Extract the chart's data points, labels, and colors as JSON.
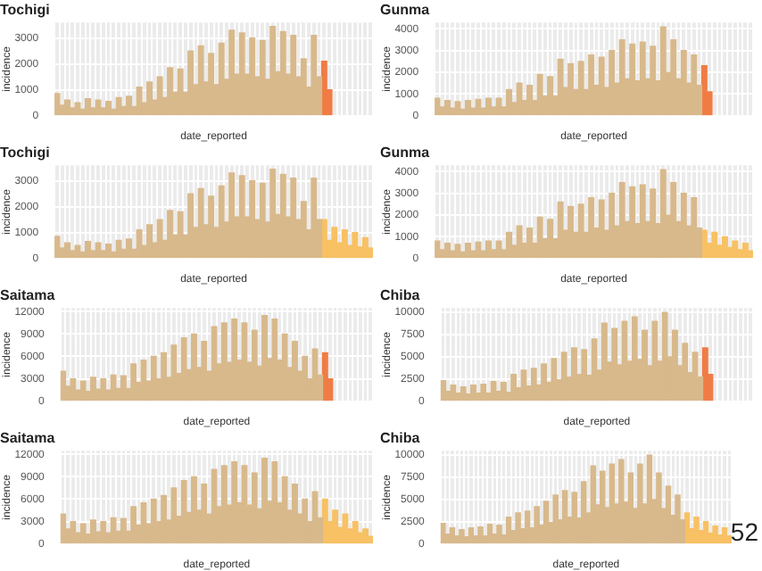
{
  "chart_data": [
    {
      "type": "bar",
      "title": "Tochigi",
      "xlabel": "date_reported",
      "ylabel": "incidence",
      "stacked": true,
      "grid": true,
      "tick_labels": "y",
      "ylim": [
        0,
        3600
      ],
      "yticks": [
        0,
        1000,
        2000,
        3000
      ],
      "categories": [
        null,
        null,
        null,
        null,
        null,
        null,
        null,
        null,
        null,
        null,
        null,
        null,
        null,
        null,
        null,
        null,
        null,
        null,
        null,
        null,
        null,
        null,
        null,
        null,
        null,
        null,
        null,
        null,
        null,
        null,
        null,
        null,
        null,
        null,
        null,
        null,
        null,
        null,
        null,
        null,
        null,
        null,
        null,
        null,
        null,
        null,
        null,
        null,
        null,
        null,
        null,
        null,
        null,
        null,
        null,
        null,
        null,
        null,
        null,
        null,
        null,
        null
      ],
      "series": [
        {
          "color": "#d8b98c",
          "values": [
            850,
            400,
            600,
            300,
            500,
            250,
            650,
            300,
            600,
            300,
            550,
            250,
            700,
            350,
            750,
            350,
            1100,
            500,
            1300,
            600,
            1500,
            700,
            1850,
            900,
            1800,
            900,
            2500,
            1200,
            2700,
            1300,
            2400,
            1200,
            2800,
            1400,
            3300,
            1600,
            3200,
            1600,
            3000,
            1500,
            2900,
            1400,
            3450,
            1700,
            3250,
            1600,
            3100,
            1500,
            2200,
            1100,
            3100,
            1500,
            null,
            null,
            null,
            null,
            null,
            null,
            null,
            null,
            null,
            null
          ]
        },
        {
          "color": "#f07c45",
          "values": [
            null,
            null,
            null,
            null,
            null,
            null,
            null,
            null,
            null,
            null,
            null,
            null,
            null,
            null,
            null,
            null,
            null,
            null,
            null,
            null,
            null,
            null,
            null,
            null,
            null,
            null,
            null,
            null,
            null,
            null,
            null,
            null,
            null,
            null,
            null,
            null,
            null,
            null,
            null,
            null,
            null,
            null,
            null,
            null,
            null,
            null,
            null,
            null,
            null,
            null,
            null,
            null,
            2100,
            1000,
            null,
            null,
            null,
            null,
            null,
            null,
            null,
            null
          ]
        }
      ]
    },
    {
      "type": "bar",
      "title": "Gunma",
      "xlabel": "date_reported",
      "ylabel": "incidence",
      "stacked": true,
      "grid": true,
      "tick_labels": "y",
      "ylim": [
        0,
        4300
      ],
      "yticks": [
        0,
        1000,
        2000,
        3000,
        4000
      ],
      "categories": [
        null,
        null,
        null,
        null,
        null,
        null,
        null,
        null,
        null,
        null,
        null,
        null,
        null,
        null,
        null,
        null,
        null,
        null,
        null,
        null,
        null,
        null,
        null,
        null,
        null,
        null,
        null,
        null,
        null,
        null,
        null,
        null,
        null,
        null,
        null,
        null,
        null,
        null,
        null,
        null,
        null,
        null,
        null,
        null,
        null,
        null,
        null,
        null,
        null,
        null,
        null,
        null,
        null,
        null,
        null,
        null,
        null,
        null,
        null,
        null,
        null,
        null
      ],
      "series": [
        {
          "color": "#d8b98c",
          "values": [
            800,
            400,
            700,
            350,
            650,
            300,
            700,
            350,
            750,
            350,
            800,
            400,
            800,
            400,
            1200,
            600,
            1500,
            700,
            1400,
            700,
            1900,
            900,
            1800,
            900,
            2600,
            1300,
            2400,
            1200,
            2500,
            1200,
            2800,
            1400,
            2700,
            1300,
            3000,
            1500,
            3500,
            1700,
            3300,
            1600,
            3400,
            1700,
            3200,
            1600,
            4100,
            2000,
            3500,
            1700,
            3000,
            1500,
            2800,
            1400,
            null,
            null,
            null,
            null,
            null,
            null,
            null,
            null,
            null,
            null
          ]
        },
        {
          "color": "#f07c45",
          "values": [
            null,
            null,
            null,
            null,
            null,
            null,
            null,
            null,
            null,
            null,
            null,
            null,
            null,
            null,
            null,
            null,
            null,
            null,
            null,
            null,
            null,
            null,
            null,
            null,
            null,
            null,
            null,
            null,
            null,
            null,
            null,
            null,
            null,
            null,
            null,
            null,
            null,
            null,
            null,
            null,
            null,
            null,
            null,
            null,
            null,
            null,
            null,
            null,
            null,
            null,
            null,
            null,
            2300,
            1100,
            null,
            null,
            null,
            null,
            null,
            null,
            null,
            null
          ]
        }
      ]
    },
    {
      "type": "bar",
      "title": "Tochigi",
      "xlabel": "date_reported",
      "ylabel": "incidence",
      "stacked": true,
      "grid": true,
      "tick_labels": "y",
      "ylim": [
        0,
        3600
      ],
      "yticks": [
        0,
        1000,
        2000,
        3000
      ],
      "categories": [
        null,
        null,
        null,
        null,
        null,
        null,
        null,
        null,
        null,
        null,
        null,
        null,
        null,
        null,
        null,
        null,
        null,
        null,
        null,
        null,
        null,
        null,
        null,
        null,
        null,
        null,
        null,
        null,
        null,
        null,
        null,
        null,
        null,
        null,
        null,
        null,
        null,
        null,
        null,
        null,
        null,
        null,
        null,
        null,
        null,
        null,
        null,
        null,
        null,
        null,
        null,
        null,
        null,
        null,
        null,
        null,
        null,
        null,
        null,
        null,
        null,
        null
      ],
      "series": [
        {
          "color": "#d8b98c",
          "values": [
            850,
            400,
            600,
            300,
            500,
            250,
            650,
            300,
            600,
            300,
            550,
            250,
            700,
            350,
            750,
            350,
            1100,
            500,
            1300,
            600,
            1500,
            700,
            1850,
            900,
            1800,
            900,
            2500,
            1200,
            2700,
            1300,
            2400,
            1200,
            2800,
            1400,
            3300,
            1600,
            3200,
            1600,
            3000,
            1500,
            2900,
            1400,
            3450,
            1700,
            3250,
            1600,
            3100,
            1500,
            2200,
            1100,
            3100,
            1500,
            null,
            null,
            null,
            null,
            null,
            null,
            null,
            null,
            null,
            null
          ]
        },
        {
          "color": "#f7c164",
          "values": [
            null,
            null,
            null,
            null,
            null,
            null,
            null,
            null,
            null,
            null,
            null,
            null,
            null,
            null,
            null,
            null,
            null,
            null,
            null,
            null,
            null,
            null,
            null,
            null,
            null,
            null,
            null,
            null,
            null,
            null,
            null,
            null,
            null,
            null,
            null,
            null,
            null,
            null,
            null,
            null,
            null,
            null,
            null,
            null,
            null,
            null,
            null,
            null,
            null,
            null,
            null,
            null,
            1500,
            700,
            1200,
            600,
            1100,
            500,
            1000,
            450,
            800,
            400
          ]
        }
      ]
    },
    {
      "type": "bar",
      "title": "Gunma",
      "xlabel": "date_reported",
      "ylabel": "incidence",
      "stacked": true,
      "grid": true,
      "tick_labels": "y",
      "ylim": [
        0,
        4300
      ],
      "yticks": [
        0,
        1000,
        2000,
        3000,
        4000
      ],
      "categories": [
        null,
        null,
        null,
        null,
        null,
        null,
        null,
        null,
        null,
        null,
        null,
        null,
        null,
        null,
        null,
        null,
        null,
        null,
        null,
        null,
        null,
        null,
        null,
        null,
        null,
        null,
        null,
        null,
        null,
        null,
        null,
        null,
        null,
        null,
        null,
        null,
        null,
        null,
        null,
        null,
        null,
        null,
        null,
        null,
        null,
        null,
        null,
        null,
        null,
        null,
        null,
        null,
        null,
        null,
        null,
        null,
        null,
        null,
        null,
        null,
        null,
        null
      ],
      "series": [
        {
          "color": "#d8b98c",
          "values": [
            800,
            400,
            700,
            350,
            650,
            300,
            700,
            350,
            750,
            350,
            800,
            400,
            800,
            400,
            1200,
            600,
            1500,
            700,
            1400,
            700,
            1900,
            900,
            1800,
            900,
            2600,
            1300,
            2400,
            1200,
            2500,
            1200,
            2800,
            1400,
            2700,
            1300,
            3000,
            1500,
            3500,
            1700,
            3300,
            1600,
            3400,
            1700,
            3200,
            1600,
            4100,
            2000,
            3500,
            1700,
            3000,
            1500,
            2800,
            1400,
            null,
            null,
            null,
            null,
            null,
            null,
            null,
            null,
            null,
            null
          ]
        },
        {
          "color": "#f7c164",
          "values": [
            null,
            null,
            null,
            null,
            null,
            null,
            null,
            null,
            null,
            null,
            null,
            null,
            null,
            null,
            null,
            null,
            null,
            null,
            null,
            null,
            null,
            null,
            null,
            null,
            null,
            null,
            null,
            null,
            null,
            null,
            null,
            null,
            null,
            null,
            null,
            null,
            null,
            null,
            null,
            null,
            null,
            null,
            null,
            null,
            null,
            null,
            null,
            null,
            null,
            null,
            null,
            null,
            1300,
            700,
            1200,
            600,
            1000,
            500,
            800,
            400,
            700,
            350
          ]
        }
      ]
    },
    {
      "type": "bar",
      "title": "Saitama",
      "xlabel": "date_reported",
      "ylabel": "incidence",
      "stacked": true,
      "grid": true,
      "tick_labels": "y",
      "ylim": [
        0,
        12500
      ],
      "yticks": [
        0,
        3000,
        6000,
        9000,
        12000
      ],
      "categories": [
        null,
        null,
        null,
        null,
        null,
        null,
        null,
        null,
        null,
        null,
        null,
        null,
        null,
        null,
        null,
        null,
        null,
        null,
        null,
        null,
        null,
        null,
        null,
        null,
        null,
        null,
        null,
        null,
        null,
        null,
        null,
        null,
        null,
        null,
        null,
        null,
        null,
        null,
        null,
        null,
        null,
        null,
        null,
        null,
        null,
        null,
        null,
        null,
        null,
        null,
        null,
        null,
        null,
        null,
        null,
        null,
        null,
        null,
        null,
        null,
        null,
        null
      ],
      "series": [
        {
          "color": "#d8b98c",
          "values": [
            4000,
            2000,
            3000,
            1500,
            2700,
            1300,
            3200,
            1600,
            3000,
            1500,
            3500,
            1700,
            3400,
            1700,
            5000,
            2500,
            5500,
            2700,
            6000,
            3000,
            6500,
            3200,
            7500,
            3700,
            8500,
            4200,
            9000,
            4500,
            8000,
            4000,
            10000,
            5000,
            10500,
            5200,
            11000,
            5500,
            10500,
            5200,
            9500,
            4700,
            11500,
            5700,
            11000,
            5500,
            9000,
            4500,
            8000,
            4000,
            6000,
            3000,
            7000,
            3500,
            null,
            null,
            null,
            null,
            null,
            null,
            null,
            null,
            null,
            null
          ]
        },
        {
          "color": "#f07c45",
          "values": [
            null,
            null,
            null,
            null,
            null,
            null,
            null,
            null,
            null,
            null,
            null,
            null,
            null,
            null,
            null,
            null,
            null,
            null,
            null,
            null,
            null,
            null,
            null,
            null,
            null,
            null,
            null,
            null,
            null,
            null,
            null,
            null,
            null,
            null,
            null,
            null,
            null,
            null,
            null,
            null,
            null,
            null,
            null,
            null,
            null,
            null,
            null,
            null,
            null,
            null,
            null,
            null,
            6500,
            3000,
            null,
            null,
            null,
            null,
            null,
            null,
            null,
            null
          ]
        }
      ]
    },
    {
      "type": "bar",
      "title": "Chiba",
      "xlabel": "date_reported",
      "ylabel": "incidence",
      "stacked": true,
      "grid": true,
      "tick_labels": "y",
      "ylim": [
        0,
        10500
      ],
      "yticks": [
        0,
        2500,
        5000,
        7500,
        10000
      ],
      "categories": [
        null,
        null,
        null,
        null,
        null,
        null,
        null,
        null,
        null,
        null,
        null,
        null,
        null,
        null,
        null,
        null,
        null,
        null,
        null,
        null,
        null,
        null,
        null,
        null,
        null,
        null,
        null,
        null,
        null,
        null,
        null,
        null,
        null,
        null,
        null,
        null,
        null,
        null,
        null,
        null,
        null,
        null,
        null,
        null,
        null,
        null,
        null,
        null,
        null,
        null,
        null,
        null,
        null,
        null,
        null,
        null,
        null,
        null,
        null,
        null,
        null,
        null
      ],
      "series": [
        {
          "color": "#d8b98c",
          "values": [
            2300,
            1100,
            1800,
            900,
            1600,
            800,
            1800,
            900,
            1900,
            900,
            2200,
            1100,
            2100,
            1000,
            3000,
            1500,
            3500,
            1700,
            3700,
            1800,
            4200,
            2100,
            4800,
            2400,
            5500,
            2700,
            6000,
            3000,
            5800,
            2900,
            7000,
            3500,
            8800,
            4400,
            8200,
            4100,
            9000,
            4500,
            9500,
            4700,
            8000,
            4000,
            9000,
            4500,
            10000,
            5000,
            8000,
            4000,
            6500,
            3200,
            5500,
            2700,
            null,
            null,
            null,
            null,
            null,
            null,
            null,
            null,
            null,
            null
          ]
        },
        {
          "color": "#f07c45",
          "values": [
            null,
            null,
            null,
            null,
            null,
            null,
            null,
            null,
            null,
            null,
            null,
            null,
            null,
            null,
            null,
            null,
            null,
            null,
            null,
            null,
            null,
            null,
            null,
            null,
            null,
            null,
            null,
            null,
            null,
            null,
            null,
            null,
            null,
            null,
            null,
            null,
            null,
            null,
            null,
            null,
            null,
            null,
            null,
            null,
            null,
            null,
            null,
            null,
            null,
            null,
            null,
            null,
            6000,
            3000,
            null,
            null,
            null,
            null,
            null,
            null,
            null,
            null
          ]
        }
      ]
    },
    {
      "type": "bar",
      "title": "Saitama",
      "xlabel": "date_reported",
      "ylabel": "incidence",
      "stacked": true,
      "grid": true,
      "tick_labels": "y",
      "ylim": [
        0,
        12500
      ],
      "yticks": [
        0,
        3000,
        6000,
        9000,
        12000
      ],
      "categories": [
        null,
        null,
        null,
        null,
        null,
        null,
        null,
        null,
        null,
        null,
        null,
        null,
        null,
        null,
        null,
        null,
        null,
        null,
        null,
        null,
        null,
        null,
        null,
        null,
        null,
        null,
        null,
        null,
        null,
        null,
        null,
        null,
        null,
        null,
        null,
        null,
        null,
        null,
        null,
        null,
        null,
        null,
        null,
        null,
        null,
        null,
        null,
        null,
        null,
        null,
        null,
        null,
        null,
        null,
        null,
        null,
        null,
        null,
        null,
        null,
        null,
        null
      ],
      "series": [
        {
          "color": "#d8b98c",
          "values": [
            4000,
            2000,
            3000,
            1500,
            2700,
            1300,
            3200,
            1600,
            3000,
            1500,
            3500,
            1700,
            3400,
            1700,
            5000,
            2500,
            5500,
            2700,
            6000,
            3000,
            6500,
            3200,
            7500,
            3700,
            8500,
            4200,
            9000,
            4500,
            8000,
            4000,
            10000,
            5000,
            10500,
            5200,
            11000,
            5500,
            10500,
            5200,
            9500,
            4700,
            11500,
            5700,
            11000,
            5500,
            9000,
            4500,
            8000,
            4000,
            6000,
            3000,
            7000,
            3500,
            null,
            null,
            null,
            null,
            null,
            null,
            null,
            null,
            null,
            null
          ]
        },
        {
          "color": "#f7c164",
          "values": [
            null,
            null,
            null,
            null,
            null,
            null,
            null,
            null,
            null,
            null,
            null,
            null,
            null,
            null,
            null,
            null,
            null,
            null,
            null,
            null,
            null,
            null,
            null,
            null,
            null,
            null,
            null,
            null,
            null,
            null,
            null,
            null,
            null,
            null,
            null,
            null,
            null,
            null,
            null,
            null,
            null,
            null,
            null,
            null,
            null,
            null,
            null,
            null,
            null,
            null,
            null,
            null,
            6000,
            3000,
            4500,
            2200,
            4000,
            2000,
            3000,
            1500,
            2000,
            1000
          ]
        }
      ]
    },
    {
      "type": "bar",
      "title": "Chiba",
      "xlabel": "date_reported",
      "ylabel": "incidence",
      "stacked": true,
      "grid": true,
      "tick_labels": "y",
      "ylim": [
        0,
        10500
      ],
      "yticks": [
        0,
        2500,
        5000,
        7500,
        10000
      ],
      "annotations": [
        "52"
      ],
      "categories": [
        null,
        null,
        null,
        null,
        null,
        null,
        null,
        null,
        null,
        null,
        null,
        null,
        null,
        null,
        null,
        null,
        null,
        null,
        null,
        null,
        null,
        null,
        null,
        null,
        null,
        null,
        null,
        null,
        null,
        null,
        null,
        null,
        null,
        null,
        null,
        null,
        null,
        null,
        null,
        null,
        null,
        null,
        null,
        null,
        null,
        null,
        null,
        null,
        null,
        null,
        null,
        null,
        null,
        null,
        null,
        null,
        null,
        null,
        null,
        null,
        null,
        null
      ],
      "series": [
        {
          "color": "#d8b98c",
          "values": [
            2300,
            1100,
            1800,
            900,
            1600,
            800,
            1800,
            900,
            1900,
            900,
            2200,
            1100,
            2100,
            1000,
            3000,
            1500,
            3500,
            1700,
            3700,
            1800,
            4200,
            2100,
            4800,
            2400,
            5500,
            2700,
            6000,
            3000,
            5800,
            2900,
            7000,
            3500,
            8800,
            4400,
            8200,
            4100,
            9000,
            4500,
            9500,
            4700,
            8000,
            4000,
            9000,
            4500,
            10000,
            5000,
            8000,
            4000,
            6500,
            3200,
            5500,
            2700,
            null,
            null,
            null,
            null,
            null,
            null,
            null,
            null,
            null,
            null
          ]
        },
        {
          "color": "#f7c164",
          "values": [
            null,
            null,
            null,
            null,
            null,
            null,
            null,
            null,
            null,
            null,
            null,
            null,
            null,
            null,
            null,
            null,
            null,
            null,
            null,
            null,
            null,
            null,
            null,
            null,
            null,
            null,
            null,
            null,
            null,
            null,
            null,
            null,
            null,
            null,
            null,
            null,
            null,
            null,
            null,
            null,
            null,
            null,
            null,
            null,
            null,
            null,
            null,
            null,
            null,
            null,
            null,
            null,
            3500,
            1700,
            3000,
            1500,
            2500,
            1200,
            2000,
            1000,
            1800,
            900
          ]
        }
      ]
    }
  ]
}
